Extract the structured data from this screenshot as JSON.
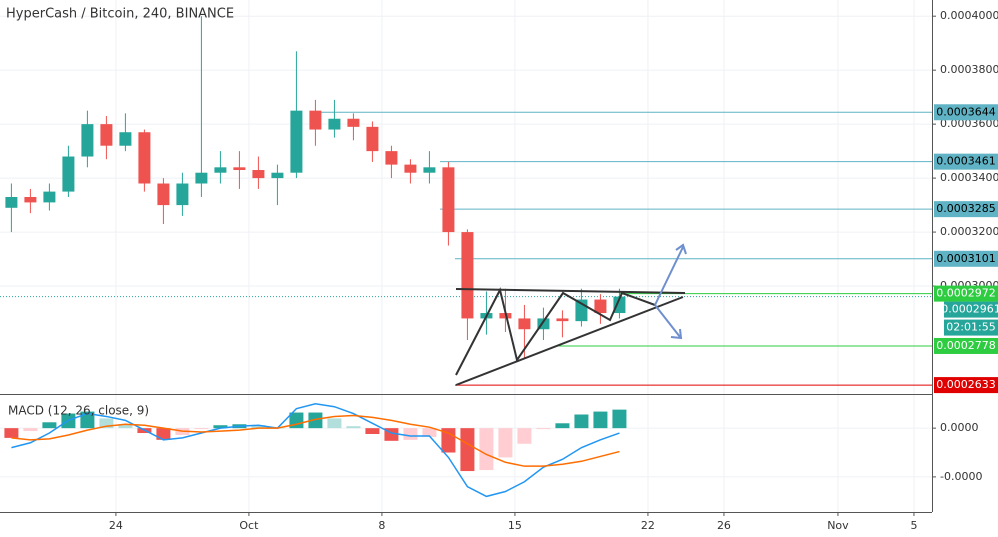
{
  "chart_data": {
    "type": "candlestick",
    "title": "HyperCash / Bitcoin, 240, BINANCE",
    "x": [
      18,
      19,
      20,
      21,
      22,
      23,
      24,
      25,
      26,
      27,
      28,
      29,
      30,
      31,
      32,
      33,
      34,
      35,
      36,
      37,
      38,
      39,
      40,
      41,
      42,
      43,
      44,
      45,
      46,
      47,
      48,
      49,
      50
    ],
    "ohlc": [
      [
        0.000329,
        0.000338,
        0.00032,
        0.000333
      ],
      [
        0.000333,
        0.000336,
        0.000327,
        0.000331
      ],
      [
        0.000331,
        0.000338,
        0.000328,
        0.000335
      ],
      [
        0.000335,
        0.000352,
        0.000333,
        0.000348
      ],
      [
        0.000348,
        0.000365,
        0.000344,
        0.00036
      ],
      [
        0.00036,
        0.000363,
        0.000347,
        0.000352
      ],
      [
        0.000352,
        0.000364,
        0.00035,
        0.000357
      ],
      [
        0.000357,
        0.000358,
        0.000335,
        0.000338
      ],
      [
        0.000338,
        0.00034,
        0.000323,
        0.00033
      ],
      [
        0.00033,
        0.000342,
        0.000326,
        0.000338
      ],
      [
        0.000338,
        0.0004,
        0.000333,
        0.000342
      ],
      [
        0.000342,
        0.00035,
        0.000338,
        0.000344
      ],
      [
        0.000344,
        0.00035,
        0.000336,
        0.000343
      ],
      [
        0.000343,
        0.000348,
        0.000336,
        0.00034
      ],
      [
        0.00034,
        0.000345,
        0.00033,
        0.000342
      ],
      [
        0.000342,
        0.000387,
        0.00034,
        0.000365
      ],
      [
        0.000365,
        0.000369,
        0.000352,
        0.000358
      ],
      [
        0.000358,
        0.000369,
        0.000355,
        0.000362
      ],
      [
        0.000362,
        0.000364,
        0.000354,
        0.000359
      ],
      [
        0.000359,
        0.000361,
        0.000346,
        0.00035
      ],
      [
        0.00035,
        0.000352,
        0.00034,
        0.000345
      ],
      [
        0.000345,
        0.000347,
        0.000338,
        0.000342
      ],
      [
        0.000342,
        0.00035,
        0.000338,
        0.000344
      ],
      [
        0.000344,
        0.000346,
        0.000315,
        0.00032
      ],
      [
        0.00032,
        0.000321,
        0.00028,
        0.000288
      ],
      [
        0.000288,
        0.000298,
        0.000282,
        0.00029
      ],
      [
        0.00029,
        0.000299,
        0.000283,
        0.000288
      ],
      [
        0.000288,
        0.000293,
        0.000273,
        0.000284
      ],
      [
        0.000284,
        0.000292,
        0.00028,
        0.000288
      ],
      [
        0.000288,
        0.000291,
        0.000281,
        0.000287
      ],
      [
        0.000287,
        0.000299,
        0.000285,
        0.000295
      ],
      [
        0.000295,
        0.000297,
        0.000286,
        0.00029
      ],
      [
        0.00029,
        0.000299,
        0.000288,
        0.0002961
      ]
    ],
    "up_color": "#26a69a",
    "down_color": "#ef5350",
    "xlim": [
      17.9,
      66.95
    ],
    "xticks": [
      {
        "value": 24,
        "label": "24"
      },
      {
        "value": 31,
        "label": "Oct"
      },
      {
        "value": 38,
        "label": "8"
      },
      {
        "value": 45,
        "label": "15"
      },
      {
        "value": 52,
        "label": "22"
      },
      {
        "value": 56,
        "label": "26"
      },
      {
        "value": 62,
        "label": "Nov"
      },
      {
        "value": 66,
        "label": "5"
      }
    ],
    "ylim": [
      0.00026,
      0.000406
    ],
    "yticks": [
      {
        "value": 0.0004,
        "label": "0.0004000"
      },
      {
        "value": 0.00038,
        "label": "0.0003800"
      },
      {
        "value": 0.00036,
        "label": "0.0003600"
      },
      {
        "value": 0.00034,
        "label": "0.0003400"
      },
      {
        "value": 0.00032,
        "label": "0.0003200"
      },
      {
        "value": 0.0003,
        "label": "0.0003000"
      }
    ],
    "grid": true,
    "levels": [
      {
        "value": 0.0003644,
        "color": "#5fb3c4"
      },
      {
        "value": 0.0003461,
        "color": "#5fb3c4"
      },
      {
        "value": 0.0003285,
        "color": "#5fb3c4"
      },
      {
        "value": 0.0003101,
        "color": "#5fb3c4"
      },
      {
        "value": 0.0002972,
        "color": "#2ecc40"
      },
      {
        "value": 0.0002778,
        "color": "#2ecc40"
      },
      {
        "value": 0.0002633,
        "color": "#e00000"
      }
    ],
    "last_price": 0.0002961,
    "countdown": "02:01:55",
    "macd": {
      "title": "MACD (12, 26, close, 9)",
      "ylim": [
        -8.6e-06,
        3.4e-06
      ],
      "yticks": [
        {
          "value": 0,
          "label": "0.0000"
        },
        {
          "value": -5e-06,
          "label": "-0.0000"
        }
      ],
      "series": [
        {
          "name": "MACD",
          "color": "#2196f3",
          "values": [
            -2e-06,
            -1.5e-06,
            -5e-07,
            8e-07,
            1.5e-06,
            1.2e-06,
            8e-07,
            -2e-07,
            -1.2e-06,
            -1e-06,
            -5e-07,
            0,
            2e-07,
            3e-07,
            0,
            2e-06,
            2.5e-06,
            2.2e-06,
            1.5e-06,
            5e-07,
            -5e-07,
            -8e-07,
            -8e-07,
            -3e-06,
            -6e-06,
            -7e-06,
            -6.5e-06,
            -5.5e-06,
            -4e-06,
            -3.2e-06,
            -2e-06,
            -1.2e-06,
            -5e-07
          ]
        },
        {
          "name": "Signal",
          "color": "#ff6d00",
          "values": [
            -1e-06,
            -1.2e-06,
            -1.1e-06,
            -7e-07,
            -2e-07,
            2e-07,
            4e-07,
            3e-07,
            0,
            -3e-07,
            -4e-07,
            -3e-07,
            -2e-07,
            0,
            0,
            4e-07,
            9e-07,
            1.2e-06,
            1.3e-06,
            1.1e-06,
            8e-07,
            4e-07,
            1e-07,
            -5e-07,
            -1.6e-06,
            -2.7e-06,
            -3.5e-06,
            -3.9e-06,
            -3.9e-06,
            -3.7e-06,
            -3.4e-06,
            -2.9e-06,
            -2.4e-06
          ]
        }
      ],
      "histogram": [
        -1e-06,
        -3e-07,
        6e-07,
        1.5e-06,
        1.7e-06,
        1e-06,
        4e-07,
        -5e-07,
        -1.2e-06,
        -7e-07,
        -1e-07,
        3e-07,
        4e-07,
        3e-07,
        0,
        1.6e-06,
        1.6e-06,
        1e-06,
        2e-07,
        -6e-07,
        -1.3e-06,
        -1.2e-06,
        -9e-07,
        -2.5e-06,
        -4.4e-06,
        -4.3e-06,
        -3e-06,
        -1.6e-06,
        -1e-07,
        5e-07,
        1.4e-06,
        1.7e-06,
        1.9e-06
      ],
      "hist_colors": {
        "up_rising": "#26a69a",
        "up_falling": "#b2dfdb",
        "down_falling": "#ef5350",
        "down_rising": "#ffcdd2"
      }
    }
  }
}
